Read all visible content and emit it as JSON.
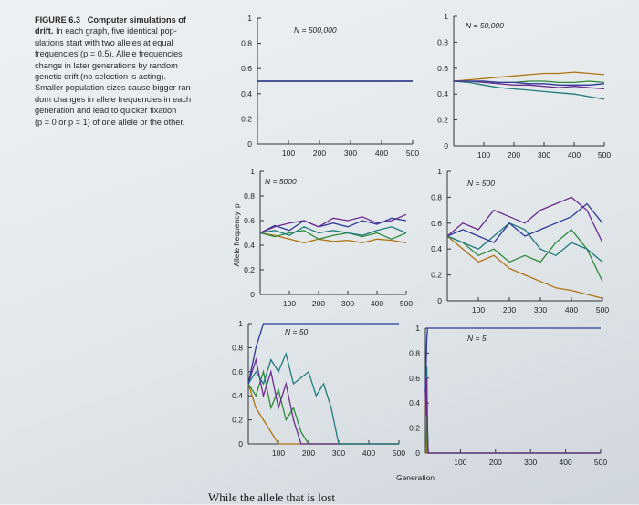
{
  "caption": {
    "figure_label": "FIGURE 6.3",
    "heading_line1": "Computer simulations of",
    "heading_line2": "drift.",
    "lines": [
      "In each graph, five identical pop-",
      "ulations start with two alleles at equal",
      "frequencies (p = 0.5). Allele frequencies",
      "change in later generations by random",
      "genetic drift (no selection is acting).",
      "Smaller population sizes cause bigger ran-",
      "dom changes in allele frequencies in each",
      "generation and lead to quicker fixation",
      "(p = 0 or p = 1) of one allele or the other."
    ]
  },
  "bottom_text": "While the allele that is lost",
  "chart_data": {
    "type": "line",
    "ylabel": "Allele frequency, p",
    "xlabel": "Generation",
    "xlim": [
      0,
      500
    ],
    "ylim": [
      0,
      1
    ],
    "x_ticks": [
      "100",
      "200",
      "300",
      "400",
      "500"
    ],
    "y_ticks": [
      "0",
      "0.2",
      "0.4",
      "0.6",
      "0.8",
      "1"
    ],
    "colors": {
      "blue": "#2b3a9c",
      "purple": "#6b2c8f",
      "teal": "#1d7a7c",
      "green": "#2f8a3c",
      "orange": "#b0720f"
    },
    "panels": [
      {
        "title": "N = 500,000",
        "x": [
          0,
          50,
          100,
          150,
          200,
          250,
          300,
          350,
          400,
          450,
          500
        ],
        "series": [
          {
            "name": "green",
            "values": [
              0.5,
              0.5,
              0.5,
              0.5,
              0.5,
              0.5,
              0.5,
              0.5,
              0.5,
              0.5,
              0.5
            ]
          },
          {
            "name": "orange",
            "values": [
              0.5,
              0.5,
              0.5,
              0.5,
              0.5,
              0.5,
              0.5,
              0.5,
              0.5,
              0.5,
              0.5
            ]
          },
          {
            "name": "teal",
            "values": [
              0.5,
              0.5,
              0.5,
              0.5,
              0.5,
              0.5,
              0.5,
              0.5,
              0.5,
              0.5,
              0.5
            ]
          },
          {
            "name": "purple",
            "values": [
              0.5,
              0.5,
              0.5,
              0.5,
              0.5,
              0.5,
              0.5,
              0.5,
              0.5,
              0.5,
              0.5
            ]
          },
          {
            "name": "blue",
            "values": [
              0.5,
              0.5,
              0.5,
              0.5,
              0.5,
              0.5,
              0.5,
              0.5,
              0.5,
              0.5,
              0.5
            ]
          }
        ]
      },
      {
        "title": "N = 50,000",
        "x": [
          0,
          50,
          100,
          150,
          200,
          250,
          300,
          350,
          400,
          450,
          500
        ],
        "series": [
          {
            "name": "green",
            "values": [
              0.5,
              0.5,
              0.5,
              0.49,
              0.49,
              0.5,
              0.5,
              0.49,
              0.49,
              0.5,
              0.49
            ]
          },
          {
            "name": "orange",
            "values": [
              0.5,
              0.51,
              0.52,
              0.53,
              0.54,
              0.55,
              0.56,
              0.56,
              0.57,
              0.56,
              0.55
            ]
          },
          {
            "name": "teal",
            "values": [
              0.5,
              0.49,
              0.47,
              0.45,
              0.44,
              0.43,
              0.42,
              0.41,
              0.4,
              0.38,
              0.36
            ]
          },
          {
            "name": "purple",
            "values": [
              0.5,
              0.5,
              0.49,
              0.48,
              0.47,
              0.47,
              0.46,
              0.45,
              0.46,
              0.45,
              0.44
            ]
          },
          {
            "name": "blue",
            "values": [
              0.5,
              0.5,
              0.5,
              0.49,
              0.49,
              0.48,
              0.48,
              0.47,
              0.47,
              0.47,
              0.48
            ]
          }
        ]
      },
      {
        "title": "N = 5000",
        "x": [
          0,
          50,
          100,
          150,
          200,
          250,
          300,
          350,
          400,
          450,
          500
        ],
        "series": [
          {
            "name": "orange",
            "values": [
              0.5,
              0.48,
              0.45,
              0.42,
              0.45,
              0.43,
              0.44,
              0.42,
              0.45,
              0.44,
              0.42
            ]
          },
          {
            "name": "green",
            "values": [
              0.5,
              0.47,
              0.5,
              0.52,
              0.45,
              0.48,
              0.5,
              0.47,
              0.5,
              0.45,
              0.5
            ]
          },
          {
            "name": "teal",
            "values": [
              0.5,
              0.52,
              0.48,
              0.55,
              0.5,
              0.52,
              0.5,
              0.48,
              0.52,
              0.55,
              0.5
            ]
          },
          {
            "name": "blue",
            "values": [
              0.5,
              0.56,
              0.52,
              0.6,
              0.55,
              0.58,
              0.55,
              0.6,
              0.57,
              0.62,
              0.6
            ]
          },
          {
            "name": "purple",
            "values": [
              0.5,
              0.55,
              0.58,
              0.6,
              0.55,
              0.62,
              0.6,
              0.63,
              0.58,
              0.6,
              0.65
            ]
          }
        ]
      },
      {
        "title": "N = 500",
        "x": [
          0,
          50,
          100,
          150,
          200,
          250,
          300,
          350,
          400,
          450,
          500
        ],
        "series": [
          {
            "name": "orange",
            "values": [
              0.5,
              0.4,
              0.3,
              0.35,
              0.25,
              0.2,
              0.15,
              0.1,
              0.08,
              0.05,
              0.02
            ]
          },
          {
            "name": "green",
            "values": [
              0.5,
              0.45,
              0.35,
              0.4,
              0.3,
              0.35,
              0.3,
              0.45,
              0.55,
              0.4,
              0.15
            ]
          },
          {
            "name": "teal",
            "values": [
              0.5,
              0.45,
              0.4,
              0.5,
              0.6,
              0.55,
              0.4,
              0.35,
              0.45,
              0.4,
              0.3
            ]
          },
          {
            "name": "blue",
            "values": [
              0.5,
              0.55,
              0.5,
              0.45,
              0.6,
              0.5,
              0.55,
              0.6,
              0.65,
              0.75,
              0.6
            ]
          },
          {
            "name": "purple",
            "values": [
              0.5,
              0.6,
              0.55,
              0.7,
              0.65,
              0.6,
              0.7,
              0.75,
              0.8,
              0.7,
              0.45
            ]
          }
        ]
      },
      {
        "title": "N = 50",
        "x": [
          0,
          25,
          50,
          75,
          100,
          125,
          150,
          175,
          200,
          225,
          250,
          275,
          300,
          500
        ],
        "series": [
          {
            "name": "orange",
            "values": [
              0.5,
              0.3,
              0.2,
              0.1,
              0,
              0,
              0,
              0,
              0,
              0,
              0,
              0,
              0,
              0
            ]
          },
          {
            "name": "green",
            "values": [
              0.5,
              0.4,
              0.6,
              0.3,
              0.45,
              0.2,
              0.3,
              0.1,
              0,
              0,
              0,
              0,
              0,
              0
            ]
          },
          {
            "name": "purple",
            "values": [
              0.5,
              0.7,
              0.4,
              0.6,
              0.3,
              0.5,
              0.2,
              0,
              0,
              0,
              0,
              0,
              0,
              0
            ]
          },
          {
            "name": "teal",
            "values": [
              0.5,
              0.6,
              0.5,
              0.7,
              0.6,
              0.75,
              0.5,
              0.55,
              0.6,
              0.4,
              0.5,
              0.3,
              0,
              0
            ]
          },
          {
            "name": "blue",
            "values": [
              0.5,
              0.8,
              1,
              1,
              1,
              1,
              1,
              1,
              1,
              1,
              1,
              1,
              1,
              1
            ]
          }
        ]
      },
      {
        "title": "N = 5",
        "x": [
          0,
          2,
          4,
          6,
          8,
          10,
          12,
          500
        ],
        "series": [
          {
            "name": "orange",
            "values": [
              0.5,
              0.2,
              0,
              0,
              0,
              0,
              0,
              0
            ]
          },
          {
            "name": "green",
            "values": [
              0.5,
              0.6,
              0.3,
              0,
              0,
              0,
              0,
              0
            ]
          },
          {
            "name": "teal",
            "values": [
              0.5,
              0.4,
              0.7,
              0.2,
              0,
              0,
              0,
              0
            ]
          },
          {
            "name": "purple",
            "values": [
              0.5,
              0.3,
              0.6,
              0.2,
              0,
              0,
              0,
              0
            ]
          },
          {
            "name": "blue",
            "values": [
              0.5,
              0.7,
              0.9,
              1,
              1,
              1,
              1,
              1
            ]
          }
        ]
      }
    ]
  }
}
